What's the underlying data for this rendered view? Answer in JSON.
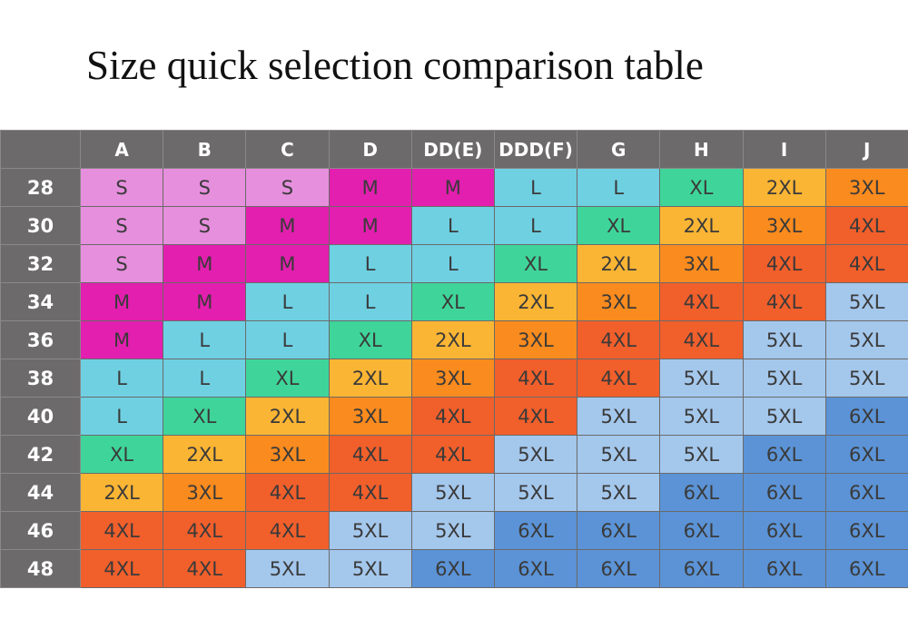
{
  "title": "Size quick selection comparison table",
  "table": {
    "corner": "",
    "columns": [
      "A",
      "B",
      "C",
      "D",
      "DD(E)",
      "DDD(F)",
      "G",
      "H",
      "I",
      "J"
    ],
    "rows": [
      {
        "band": "28",
        "sizes": [
          "S",
          "S",
          "S",
          "M",
          "M",
          "L",
          "L",
          "XL",
          "2XL",
          "3XL"
        ]
      },
      {
        "band": "30",
        "sizes": [
          "S",
          "S",
          "M",
          "M",
          "L",
          "L",
          "XL",
          "2XL",
          "3XL",
          "4XL"
        ]
      },
      {
        "band": "32",
        "sizes": [
          "S",
          "M",
          "M",
          "L",
          "L",
          "XL",
          "2XL",
          "3XL",
          "4XL",
          "4XL"
        ]
      },
      {
        "band": "34",
        "sizes": [
          "M",
          "M",
          "L",
          "L",
          "XL",
          "2XL",
          "3XL",
          "4XL",
          "4XL",
          "5XL"
        ]
      },
      {
        "band": "36",
        "sizes": [
          "M",
          "L",
          "L",
          "XL",
          "2XL",
          "3XL",
          "4XL",
          "4XL",
          "5XL",
          "5XL"
        ]
      },
      {
        "band": "38",
        "sizes": [
          "L",
          "L",
          "XL",
          "2XL",
          "3XL",
          "4XL",
          "4XL",
          "5XL",
          "5XL",
          "5XL"
        ]
      },
      {
        "band": "40",
        "sizes": [
          "L",
          "XL",
          "2XL",
          "3XL",
          "4XL",
          "4XL",
          "5XL",
          "5XL",
          "5XL",
          "6XL"
        ]
      },
      {
        "band": "42",
        "sizes": [
          "XL",
          "2XL",
          "3XL",
          "4XL",
          "4XL",
          "5XL",
          "5XL",
          "5XL",
          "6XL",
          "6XL"
        ]
      },
      {
        "band": "44",
        "sizes": [
          "2XL",
          "3XL",
          "4XL",
          "4XL",
          "5XL",
          "5XL",
          "5XL",
          "6XL",
          "6XL",
          "6XL"
        ]
      },
      {
        "band": "46",
        "sizes": [
          "4XL",
          "4XL",
          "4XL",
          "5XL",
          "5XL",
          "6XL",
          "6XL",
          "6XL",
          "6XL",
          "6XL"
        ]
      },
      {
        "band": "48",
        "sizes": [
          "4XL",
          "4XL",
          "5XL",
          "5XL",
          "6XL",
          "6XL",
          "6XL",
          "6XL",
          "6XL",
          "6XL"
        ]
      }
    ]
  },
  "size_colors": {
    "S": "#e68fdd",
    "M": "#e21fae",
    "L": "#6fd0e2",
    "XL": "#3fd59a",
    "2XL": "#fbb534",
    "3XL": "#fa8b1e",
    "4XL": "#f15f2b",
    "5XL": "#a4c7ec",
    "6XL": "#5b93d6"
  }
}
